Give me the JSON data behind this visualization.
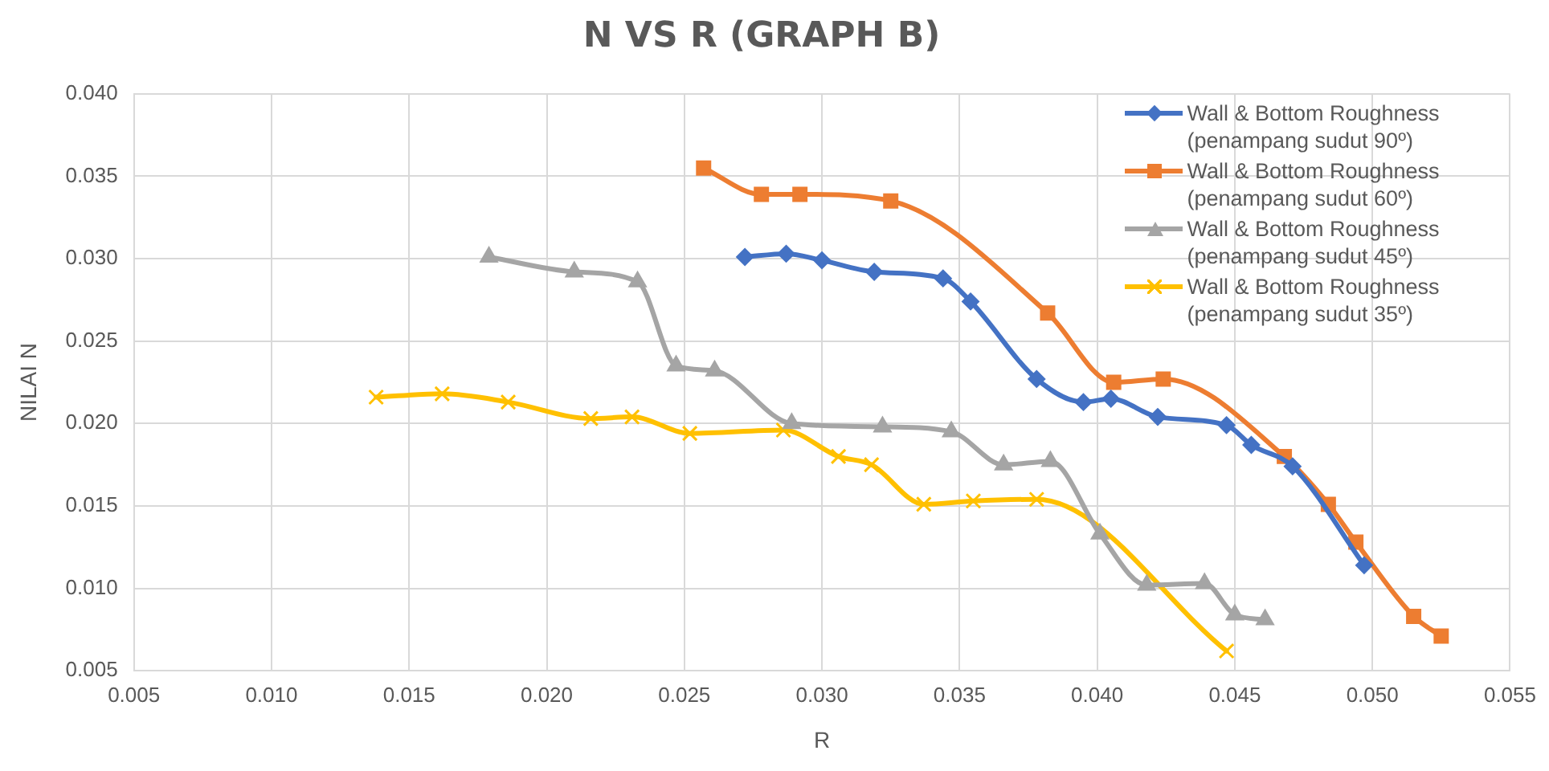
{
  "chart_data": {
    "type": "line",
    "title": "N VS R (GRAPH B)",
    "xlabel": "R",
    "ylabel": "NILAI N",
    "xlim": [
      0.005,
      0.055
    ],
    "xticks": [
      0.005,
      {
        "value": 0.01,
        "label": "0.010"
      },
      0.015,
      {
        "value": 0.02,
        "label": "0.020"
      },
      0.025,
      {
        "value": 0.03,
        "label": "0.030"
      },
      0.035,
      {
        "value": 0.04,
        "label": "0.040"
      },
      0.045,
      {
        "value": 0.05,
        "label": "0.050"
      },
      0.055
    ],
    "ylim": [
      0.005,
      0.04
    ],
    "yticks": [
      0.005,
      {
        "value": 0.01,
        "label": "0.010"
      },
      0.015,
      {
        "value": 0.02,
        "label": "0.020"
      },
      0.025,
      {
        "value": 0.03,
        "label": "0.030"
      },
      0.035,
      {
        "value": 0.04,
        "label": "0.040"
      }
    ],
    "grid": true,
    "legend": "top right",
    "series": [
      {
        "name": "Wall & Bottom Roughness (penampang sudut 90º)",
        "color": "#4472c4",
        "marker": "diamond",
        "x": [
          0.0272,
          0.0287,
          0.03,
          0.0319,
          0.0344,
          0.0354,
          0.0378,
          0.0395,
          0.0405,
          0.0422,
          0.0447,
          0.0456,
          0.0471,
          0.0497
        ],
        "values": [
          0.0301,
          0.0303,
          0.0299,
          0.0292,
          0.0288,
          0.0274,
          0.0227,
          0.0213,
          0.0215,
          0.0204,
          0.0199,
          0.0187,
          0.0174,
          0.0114
        ]
      },
      {
        "name": "Wall & Bottom Roughness (penampang sudut 60º)",
        "color": "#ed7d31",
        "marker": "square",
        "x": [
          0.0257,
          0.0278,
          0.0292,
          0.0325,
          0.0382,
          0.0406,
          0.0424,
          0.0468,
          0.0484,
          0.0494,
          0.0515,
          0.0525
        ],
        "values": [
          0.0355,
          0.0339,
          0.0339,
          0.0335,
          0.0267,
          0.0225,
          0.0227,
          0.018,
          0.0151,
          0.0128,
          0.0083,
          0.0071
        ]
      },
      {
        "name": "Wall & Bottom Roughness (penampang sudut 45º)",
        "color": "#a5a5a5",
        "marker": "triangle",
        "x": [
          0.0179,
          0.021,
          0.0233,
          0.0247,
          0.0261,
          0.0289,
          0.0322,
          0.0347,
          0.0366,
          0.0383,
          0.0401,
          0.0418,
          0.0439,
          0.045,
          0.0461
        ],
        "values": [
          0.0301,
          0.0292,
          0.0286,
          0.0235,
          0.0232,
          0.02,
          0.0198,
          0.0195,
          0.0175,
          0.0177,
          0.0133,
          0.0102,
          0.0103,
          0.0084,
          0.0081
        ]
      },
      {
        "name": "Wall & Bottom Roughness (penampang sudut 35º)",
        "color": "#ffc000",
        "marker": "cross",
        "x": [
          0.0138,
          0.0162,
          0.0186,
          0.0216,
          0.0231,
          0.0252,
          0.0286,
          0.0306,
          0.0318,
          0.0337,
          0.0355,
          0.0378,
          0.0447
        ],
        "values": [
          0.0216,
          0.0218,
          0.0213,
          0.0203,
          0.0204,
          0.0194,
          0.0196,
          0.018,
          0.0175,
          0.0151,
          0.0153,
          0.0154,
          0.0062
        ]
      }
    ]
  }
}
